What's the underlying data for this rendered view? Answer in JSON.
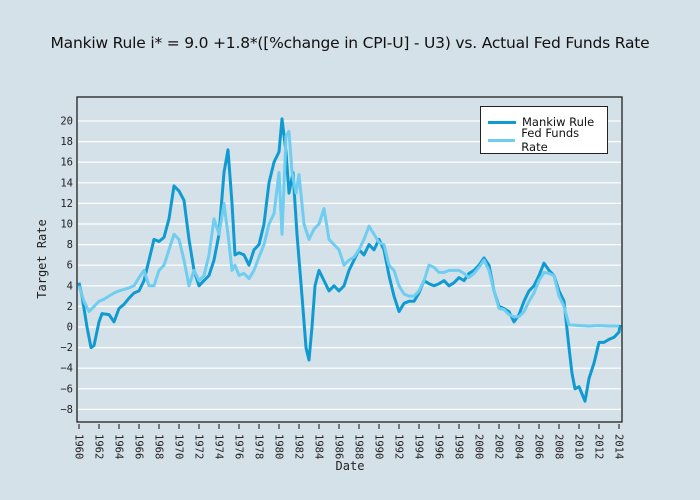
{
  "chart_data": {
    "type": "line",
    "title": "Mankiw Rule i* = 9.0 +1.8*([%change in CPI-U] - U3) vs. Actual Fed Funds Rate",
    "xlabel": "Date",
    "ylabel": "Target Rate",
    "xlim": [
      1960,
      2014.2
    ],
    "ylim": [
      -9.2,
      22
    ],
    "x_ticks": [
      "1960",
      "1962",
      "1964",
      "1966",
      "1968",
      "1970",
      "1972",
      "1974",
      "1976",
      "1978",
      "1980",
      "1982",
      "1984",
      "1986",
      "1988",
      "1990",
      "1992",
      "1994",
      "1996",
      "1998",
      "2000",
      "2002",
      "2004",
      "2006",
      "2008",
      "2010",
      "2012",
      "2014"
    ],
    "y_ticks": [
      "20",
      "18",
      "16",
      "14",
      "12",
      "10",
      "8",
      "6",
      "4",
      "2",
      "0",
      "−2",
      "−4",
      "−6",
      "−8"
    ],
    "y_tick_values": [
      20,
      18,
      16,
      14,
      12,
      10,
      8,
      6,
      4,
      2,
      0,
      -2,
      -4,
      -6,
      -8
    ],
    "grid": true,
    "legend_position": "top-right",
    "series": [
      {
        "name": "Mankiw Rule",
        "color": "#0f9bd1",
        "x": [
          1960,
          1960.3,
          1960.8,
          1961.2,
          1961.5,
          1962,
          1962.3,
          1963,
          1963.5,
          1964,
          1964.5,
          1965,
          1965.5,
          1966,
          1966.5,
          1967,
          1967.5,
          1968,
          1968.5,
          1969,
          1969.5,
          1970,
          1970.5,
          1971,
          1971.5,
          1972,
          1972.5,
          1973,
          1973.5,
          1974,
          1974.5,
          1974.9,
          1975.3,
          1975.6,
          1976,
          1976.5,
          1977,
          1977.5,
          1978,
          1978.5,
          1979,
          1979.5,
          1980,
          1980.3,
          1980.7,
          1981,
          1981.4,
          1981.8,
          1982.3,
          1982.7,
          1983,
          1983.3,
          1983.6,
          1984,
          1984.5,
          1985,
          1985.5,
          1986,
          1986.5,
          1987,
          1987.5,
          1988,
          1988.5,
          1989,
          1989.5,
          1990,
          1990.5,
          1991,
          1991.5,
          1992,
          1992.5,
          1993,
          1993.5,
          1994,
          1994.5,
          1995,
          1995.5,
          1996,
          1996.5,
          1997,
          1997.5,
          1998,
          1998.5,
          1999,
          1999.5,
          2000,
          2000.5,
          2001,
          2001.5,
          2002,
          2002.5,
          2003,
          2003.5,
          2004,
          2004.5,
          2005,
          2005.5,
          2006,
          2006.5,
          2007,
          2007.5,
          2008,
          2008.5,
          2009,
          2009.3,
          2009.6,
          2010,
          2010.3,
          2010.6,
          2011,
          2011.5,
          2012,
          2012.5,
          2013,
          2013.5,
          2014,
          2014.1
        ],
        "values": [
          4.3,
          3,
          0,
          -2,
          -1.8,
          0.5,
          1.3,
          1.2,
          0.5,
          1.8,
          2.2,
          2.8,
          3.3,
          3.5,
          4.5,
          6.5,
          8.5,
          8.3,
          8.7,
          10.5,
          13.7,
          13.2,
          12.3,
          8.5,
          5.5,
          4,
          4.5,
          5,
          6.5,
          9,
          15,
          17.2,
          12,
          7,
          7.2,
          7,
          6,
          7.5,
          8,
          10,
          14,
          16,
          17,
          20.2,
          17,
          13,
          15,
          9,
          3,
          -2,
          -3.2,
          0,
          4,
          5.5,
          4.5,
          3.5,
          4,
          3.5,
          4,
          5.5,
          6.5,
          7.5,
          7,
          8,
          7.5,
          8.5,
          7.5,
          5,
          3,
          1.5,
          2.3,
          2.5,
          2.5,
          3.3,
          4.5,
          4.2,
          4,
          4.2,
          4.5,
          4,
          4.3,
          4.8,
          4.5,
          5.2,
          5.5,
          6,
          6.7,
          6,
          3.5,
          2,
          1.8,
          1.5,
          0.5,
          1.2,
          2.5,
          3.5,
          4,
          5,
          6.2,
          5.5,
          5,
          3.5,
          2.5,
          -2,
          -4.5,
          -6,
          -5.8,
          -6.5,
          -7.2,
          -5,
          -3.5,
          -1.5,
          -1.5,
          -1.2,
          -1,
          -0.5,
          0.2
        ]
      },
      {
        "name": "Fed Funds Rate",
        "color": "#6fcdf0",
        "x": [
          1960,
          1960.5,
          1961,
          1961.5,
          1962,
          1962.5,
          1963,
          1963.5,
          1964,
          1965,
          1965.5,
          1966,
          1966.5,
          1967,
          1967.5,
          1968,
          1968.5,
          1969,
          1969.5,
          1970,
          1970.5,
          1971,
          1971.5,
          1972,
          1972.5,
          1973,
          1973.5,
          1974,
          1974.5,
          1974.9,
          1975.3,
          1975.6,
          1976,
          1976.5,
          1977,
          1977.5,
          1978,
          1978.5,
          1979,
          1979.5,
          1980,
          1980.3,
          1980.7,
          1981,
          1981.3,
          1981.7,
          1982,
          1982.5,
          1983,
          1983.5,
          1984,
          1984.5,
          1985,
          1985.5,
          1986,
          1986.5,
          1987,
          1987.5,
          1988,
          1988.5,
          1989,
          1989.5,
          1990,
          1990.5,
          1991,
          1991.5,
          1992,
          1992.5,
          1993,
          1993.5,
          1994,
          1994.5,
          1995,
          1995.5,
          1996,
          1996.5,
          1997,
          1997.5,
          1998,
          1998.5,
          1999,
          1999.5,
          2000,
          2000.5,
          2001,
          2001.5,
          2002,
          2002.5,
          2003,
          2003.5,
          2004,
          2004.5,
          2005,
          2005.5,
          2006,
          2006.5,
          2007,
          2007.5,
          2008,
          2008.5,
          2009,
          2010,
          2011,
          2012,
          2013,
          2014
        ],
        "values": [
          4,
          2.5,
          1.5,
          2,
          2.5,
          2.7,
          3,
          3.3,
          3.5,
          3.8,
          4,
          4.8,
          5.5,
          4,
          4,
          5.5,
          6,
          7.5,
          9,
          8.5,
          6.5,
          4,
          5.5,
          4.5,
          5,
          7,
          10.5,
          9,
          12,
          9,
          5.5,
          6,
          5,
          5.2,
          4.7,
          5.5,
          6.8,
          8,
          10,
          11,
          15,
          9,
          18.5,
          19,
          15,
          13,
          14.8,
          10,
          8.5,
          9.5,
          10,
          11.5,
          8.5,
          8,
          7.5,
          6,
          6.5,
          6.8,
          7.5,
          8.5,
          9.8,
          9,
          8.2,
          8,
          6,
          5.5,
          4,
          3.2,
          3,
          3,
          3.5,
          4.5,
          6,
          5.8,
          5.3,
          5.3,
          5.5,
          5.5,
          5.5,
          5.2,
          4.8,
          5.2,
          5.8,
          6.5,
          5.5,
          3.5,
          1.8,
          1.7,
          1.2,
          1,
          1,
          1.5,
          2.5,
          3.3,
          4.5,
          5.3,
          5.2,
          5,
          3,
          2,
          0.2,
          0.15,
          0.1,
          0.15,
          0.1,
          0.1
        ]
      }
    ]
  }
}
